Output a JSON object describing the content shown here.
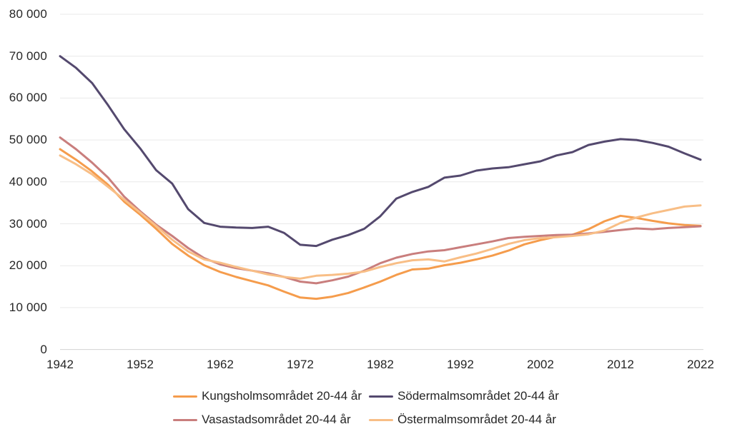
{
  "chart_data": {
    "type": "line",
    "title": "",
    "xlabel": "",
    "ylabel": "",
    "ylim": [
      0,
      80000
    ],
    "grid": "horizontal",
    "legend_position": "bottom",
    "x_tick_years": [
      1942,
      1952,
      1962,
      1972,
      1982,
      1992,
      2002,
      2012,
      2022
    ],
    "y_ticks": [
      {
        "value": 0,
        "label": "0"
      },
      {
        "value": 10000,
        "label": "10 000"
      },
      {
        "value": 20000,
        "label": "20 000"
      },
      {
        "value": 30000,
        "label": "30 000"
      },
      {
        "value": 40000,
        "label": "40 000"
      },
      {
        "value": 50000,
        "label": "50 000"
      },
      {
        "value": 60000,
        "label": "60 000"
      },
      {
        "value": 70000,
        "label": "70 000"
      },
      {
        "value": 80000,
        "label": "80 000"
      }
    ],
    "x_years": [
      1942,
      1944,
      1946,
      1948,
      1950,
      1952,
      1954,
      1956,
      1958,
      1960,
      1962,
      1964,
      1966,
      1968,
      1970,
      1972,
      1974,
      1976,
      1978,
      1980,
      1982,
      1984,
      1986,
      1988,
      1990,
      1992,
      1994,
      1996,
      1998,
      2000,
      2002,
      2004,
      2006,
      2008,
      2010,
      2012,
      2014,
      2016,
      2018,
      2020,
      2022
    ],
    "series": [
      {
        "name": "Kungsholmsområdet 20-44 år",
        "color": "#F59C4C",
        "values": [
          47800,
          45300,
          42500,
          39300,
          35300,
          32200,
          28800,
          25200,
          22400,
          20100,
          18500,
          17300,
          16300,
          15300,
          13800,
          12400,
          12100,
          12600,
          13500,
          14800,
          16200,
          17800,
          19100,
          19300,
          20100,
          20700,
          21500,
          22400,
          23600,
          25100,
          26100,
          26900,
          27400,
          28700,
          30600,
          31900,
          31400,
          30700,
          30100,
          29700,
          29500
        ]
      },
      {
        "name": "Södermalmsområdet 20-44 år",
        "color": "#54496E",
        "values": [
          70000,
          67200,
          63600,
          58300,
          52600,
          48000,
          42800,
          39600,
          33500,
          30200,
          29300,
          29100,
          29000,
          29300,
          27800,
          25000,
          24700,
          26200,
          27300,
          28800,
          31800,
          36000,
          37600,
          38800,
          41000,
          41500,
          42700,
          43200,
          43500,
          44200,
          44900,
          46300,
          47100,
          48800,
          49600,
          50200,
          50000,
          49300,
          48400,
          46800,
          45300
        ]
      },
      {
        "name": "Vasastadsområdet 20-44 år",
        "color": "#C97E7D",
        "values": [
          50600,
          47800,
          44600,
          41000,
          36500,
          33000,
          29800,
          27100,
          24200,
          21800,
          20300,
          19400,
          18800,
          18200,
          17300,
          16200,
          15800,
          16500,
          17400,
          18800,
          20600,
          21900,
          22800,
          23400,
          23700,
          24400,
          25100,
          25800,
          26600,
          26900,
          27100,
          27300,
          27400,
          27700,
          28100,
          28500,
          28900,
          28700,
          29000,
          29200,
          29400
        ]
      },
      {
        "name": "Östermalmsområdet 20-44 år",
        "color": "#F8BE86",
        "values": [
          46300,
          44200,
          41800,
          38800,
          35800,
          32700,
          29500,
          26200,
          23400,
          21500,
          20700,
          19700,
          18800,
          17900,
          17300,
          16900,
          17600,
          17800,
          18100,
          18600,
          19700,
          20600,
          21300,
          21500,
          21000,
          22000,
          22900,
          24000,
          25200,
          26100,
          26600,
          26800,
          27100,
          27500,
          28400,
          30200,
          31500,
          32500,
          33300,
          34100,
          34400
        ]
      }
    ],
    "legend_rows": [
      [
        "Kungsholmsområdet 20-44 år",
        "Södermalmsområdet 20-44 år"
      ],
      [
        "Vasastadsområdet 20-44 år",
        "Östermalmsområdet 20-44 år"
      ]
    ],
    "style": {
      "gridline_color": "#E9E9E9",
      "baseline_color": "#D2D2D2",
      "axis_text_color": "#262626",
      "background": "#FFFFFF"
    }
  }
}
